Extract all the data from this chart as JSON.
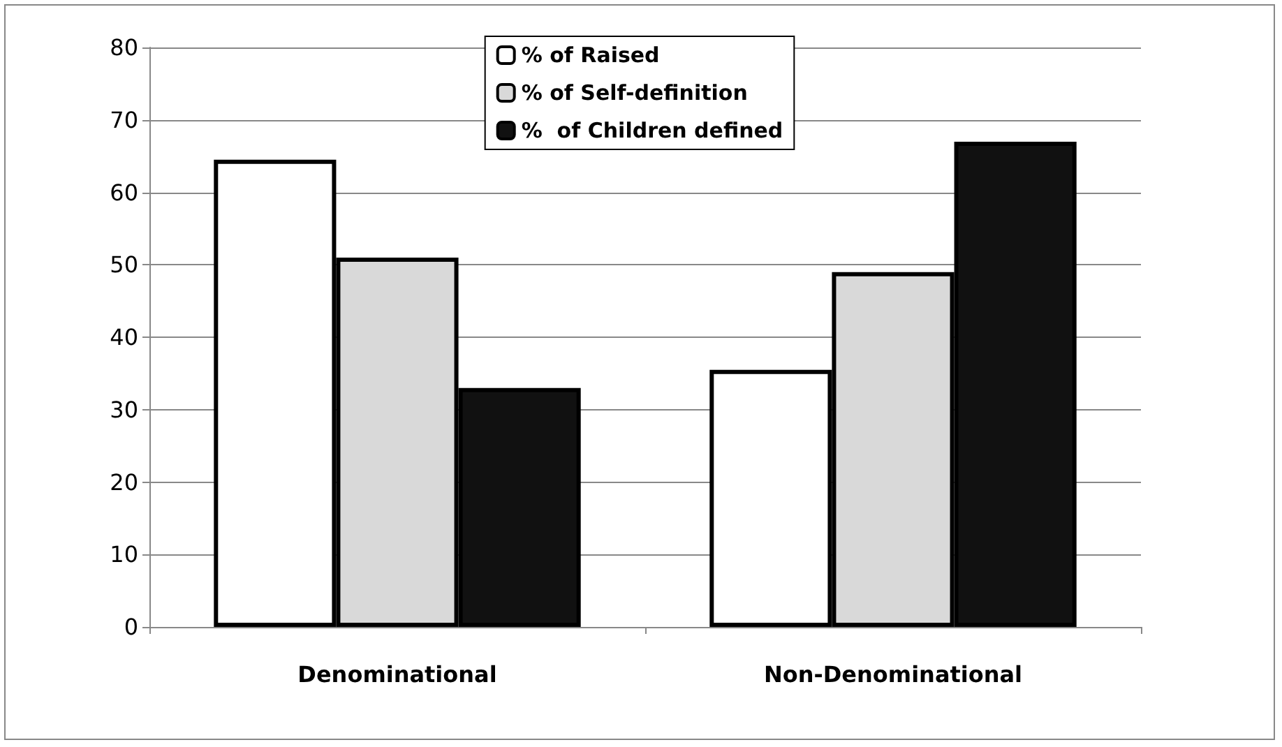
{
  "chart_data": {
    "type": "bar",
    "categories": [
      "Denominational",
      "Non-Denominational"
    ],
    "series": [
      {
        "name": "% of Raised",
        "color": "#ffffff",
        "values": [
          64.5,
          35.5
        ]
      },
      {
        "name": "% of Self-definition",
        "color": "#d9d9d9",
        "values": [
          51,
          49
        ]
      },
      {
        "name": "%  of Children defined",
        "color": "#111111",
        "values": [
          33,
          67
        ]
      }
    ],
    "ylim": [
      0,
      80
    ],
    "yticks": [
      0,
      10,
      20,
      30,
      40,
      50,
      60,
      70,
      80
    ],
    "grid": "y",
    "legend": "top"
  }
}
